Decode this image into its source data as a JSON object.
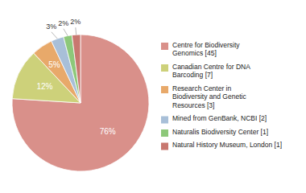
{
  "chart_data": {
    "type": "pie",
    "categories": [
      "Centre for Biodiversity\nGenomics [45]",
      "Canadian Centre for DNA\nBarcoding [7]",
      "Research Center in\nBiodiversity and Genetic\nResources [3]",
      "Mined from GenBank, NCBI [2]",
      "Naturalis Biodiversity Center [1]",
      "Natural History Museum, London [1]"
    ],
    "values": [
      76,
      12,
      5,
      3,
      2,
      2
    ],
    "value_labels": [
      "76%",
      "12%",
      "5%",
      "3%",
      "2%",
      "2%"
    ],
    "colors": [
      "#d9908a",
      "#cdd17a",
      "#e8a96a",
      "#a8bfd8",
      "#8dc87a",
      "#c87870"
    ],
    "data_labels": true,
    "legend": "right"
  }
}
